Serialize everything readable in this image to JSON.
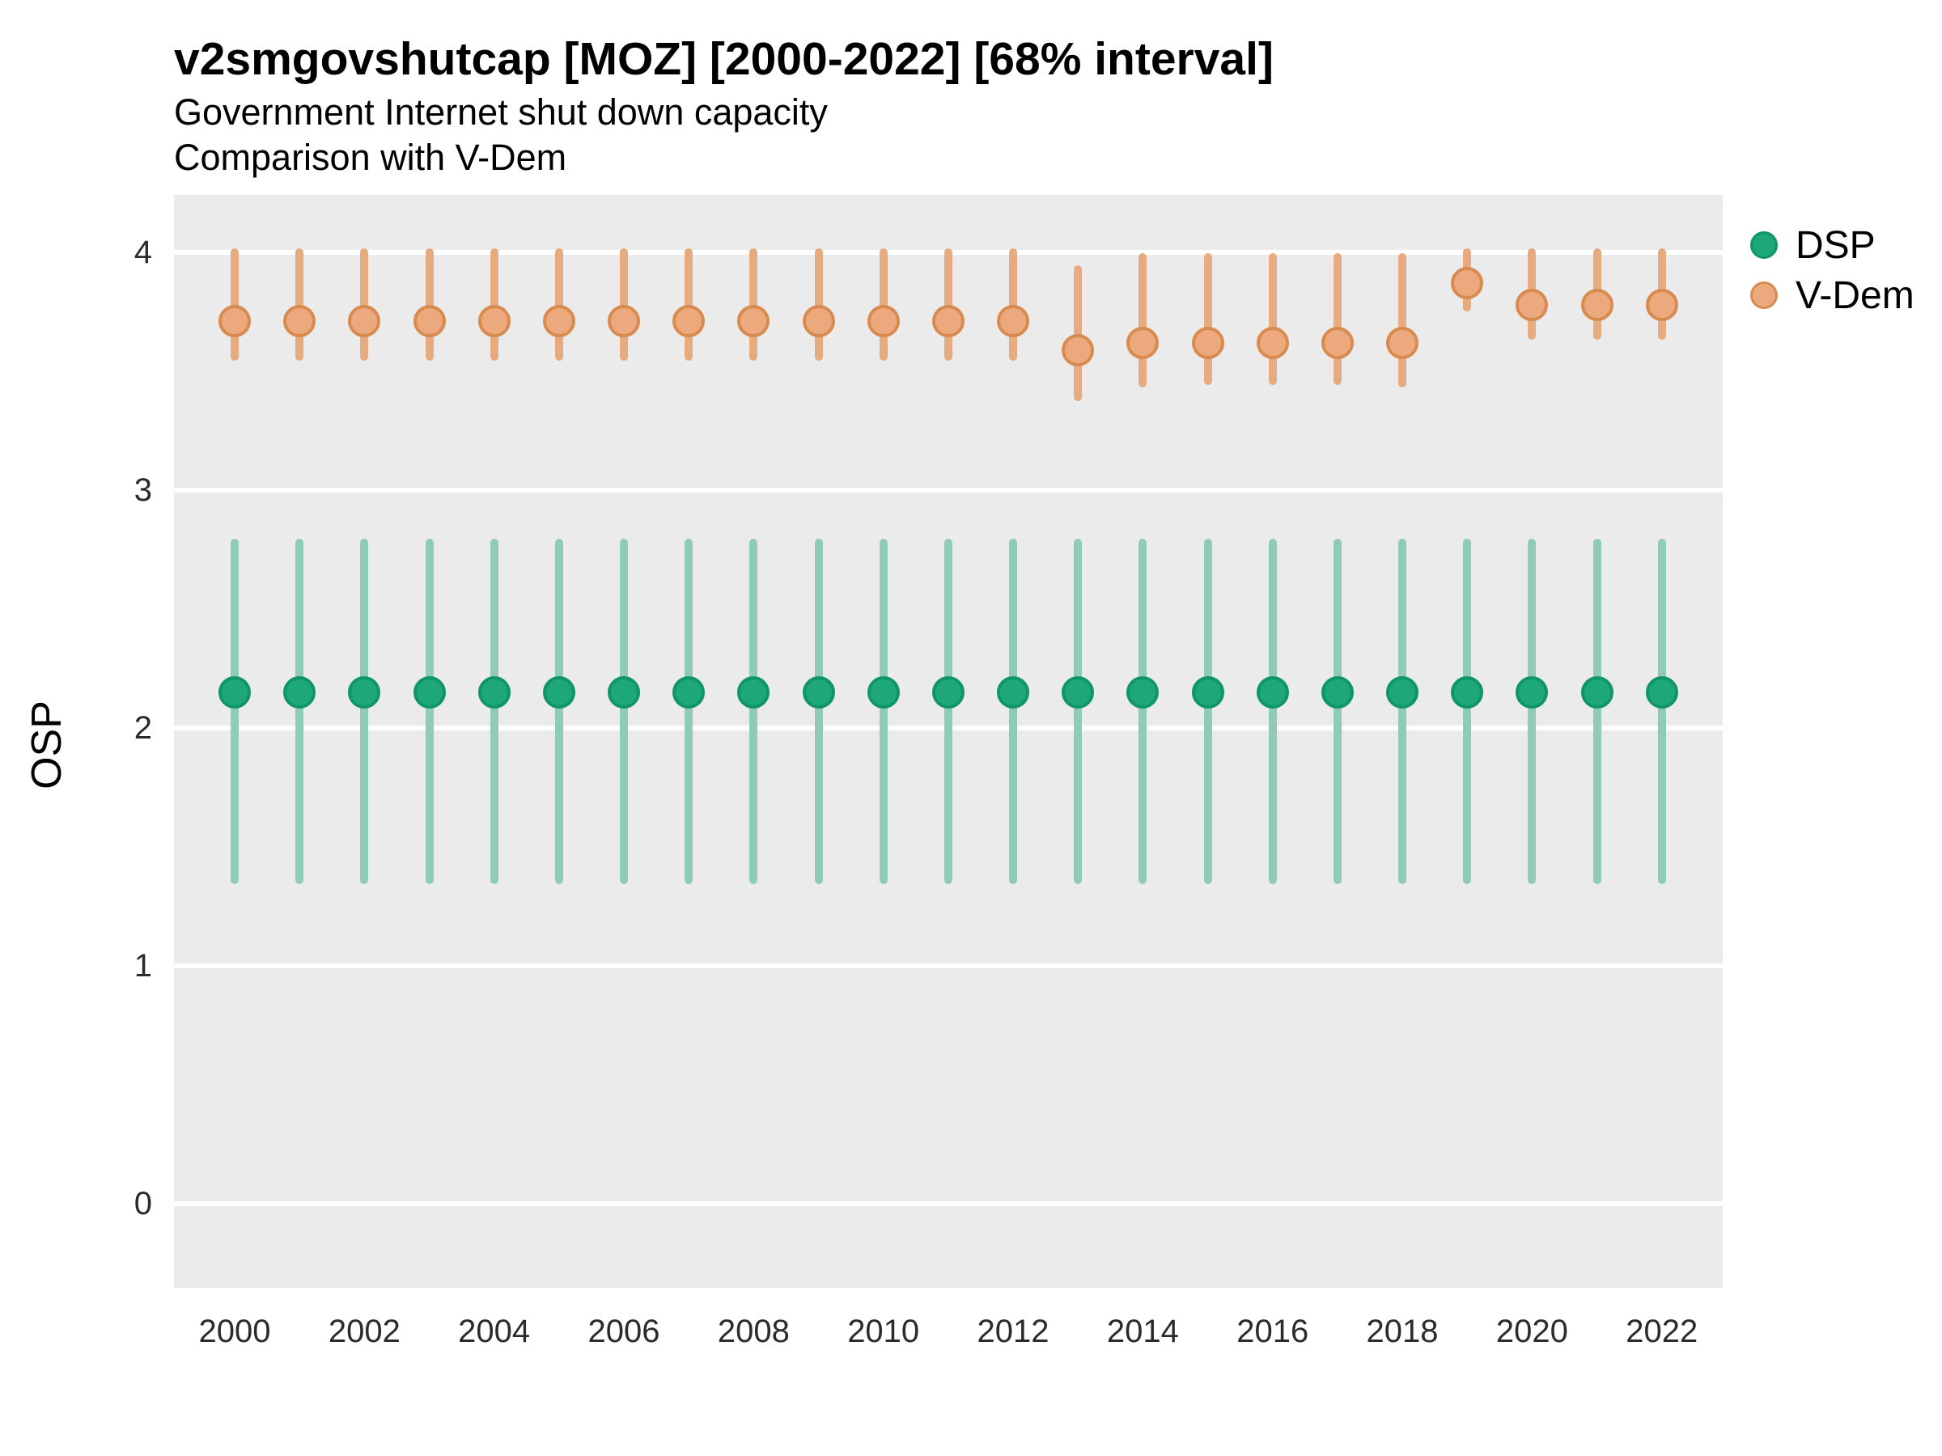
{
  "header": {
    "title": "v2smgovshutcap [MOZ] [2000-2022] [68% interval]",
    "subtitle_line1": "Government Internet shut down capacity",
    "subtitle_line2": "Comparison with V-Dem"
  },
  "axes": {
    "y_label": "OSP",
    "y_ticks": [
      4,
      3,
      2,
      1,
      0
    ],
    "x_ticks": [
      2000,
      2002,
      2004,
      2006,
      2008,
      2010,
      2012,
      2014,
      2016,
      2018,
      2020,
      2022
    ]
  },
  "legend": {
    "items": [
      {
        "label": "DSP"
      },
      {
        "label": "V-Dem"
      }
    ]
  },
  "colors": {
    "panel_bg": "#EBEBEB",
    "gridline": "#FFFFFF",
    "dsp_bar": "#8FCBB5",
    "dsp_point_fill": "#1DA77B",
    "dsp_point_stroke": "#0F9568",
    "vdem_bar": "#E6AC80",
    "vdem_point_fill": "#EBA97D",
    "vdem_point_stroke": "#D98B4F"
  },
  "chart_data": {
    "type": "pointrange",
    "title": "v2smgovshutcap [MOZ] [2000-2022] [68% interval]",
    "subtitle": [
      "Government Internet shut down capacity",
      "Comparison with V-Dem"
    ],
    "interval": "68%",
    "xlabel": "",
    "ylabel": "OSP",
    "xlim": [
      1999.05,
      2022.95
    ],
    "ylim": [
      -0.36,
      4.24
    ],
    "grid": "major horizontal white lines on gray panel",
    "legend_position": "right",
    "x": [
      2000,
      2001,
      2002,
      2003,
      2004,
      2005,
      2006,
      2007,
      2008,
      2009,
      2010,
      2011,
      2012,
      2013,
      2014,
      2015,
      2016,
      2017,
      2018,
      2019,
      2020,
      2021,
      2022
    ],
    "series": [
      {
        "name": "DSP",
        "points": [
          {
            "year": 2000,
            "est": 2.15,
            "lo": 1.36,
            "hi": 2.78
          },
          {
            "year": 2001,
            "est": 2.15,
            "lo": 1.36,
            "hi": 2.78
          },
          {
            "year": 2002,
            "est": 2.15,
            "lo": 1.36,
            "hi": 2.78
          },
          {
            "year": 2003,
            "est": 2.15,
            "lo": 1.36,
            "hi": 2.78
          },
          {
            "year": 2004,
            "est": 2.15,
            "lo": 1.36,
            "hi": 2.78
          },
          {
            "year": 2005,
            "est": 2.15,
            "lo": 1.36,
            "hi": 2.78
          },
          {
            "year": 2006,
            "est": 2.15,
            "lo": 1.36,
            "hi": 2.78
          },
          {
            "year": 2007,
            "est": 2.15,
            "lo": 1.36,
            "hi": 2.78
          },
          {
            "year": 2008,
            "est": 2.15,
            "lo": 1.36,
            "hi": 2.78
          },
          {
            "year": 2009,
            "est": 2.15,
            "lo": 1.36,
            "hi": 2.78
          },
          {
            "year": 2010,
            "est": 2.15,
            "lo": 1.36,
            "hi": 2.78
          },
          {
            "year": 2011,
            "est": 2.15,
            "lo": 1.36,
            "hi": 2.78
          },
          {
            "year": 2012,
            "est": 2.15,
            "lo": 1.36,
            "hi": 2.78
          },
          {
            "year": 2013,
            "est": 2.15,
            "lo": 1.36,
            "hi": 2.78
          },
          {
            "year": 2014,
            "est": 2.15,
            "lo": 1.36,
            "hi": 2.78
          },
          {
            "year": 2015,
            "est": 2.15,
            "lo": 1.36,
            "hi": 2.78
          },
          {
            "year": 2016,
            "est": 2.15,
            "lo": 1.36,
            "hi": 2.78
          },
          {
            "year": 2017,
            "est": 2.15,
            "lo": 1.36,
            "hi": 2.78
          },
          {
            "year": 2018,
            "est": 2.15,
            "lo": 1.36,
            "hi": 2.78
          },
          {
            "year": 2019,
            "est": 2.15,
            "lo": 1.36,
            "hi": 2.78
          },
          {
            "year": 2020,
            "est": 2.15,
            "lo": 1.36,
            "hi": 2.78
          },
          {
            "year": 2021,
            "est": 2.15,
            "lo": 1.36,
            "hi": 2.78
          },
          {
            "year": 2022,
            "est": 2.15,
            "lo": 1.36,
            "hi": 2.78
          }
        ]
      },
      {
        "name": "V-Dem",
        "points": [
          {
            "year": 2000,
            "est": 3.71,
            "lo": 3.56,
            "hi": 4.0
          },
          {
            "year": 2001,
            "est": 3.71,
            "lo": 3.56,
            "hi": 4.0
          },
          {
            "year": 2002,
            "est": 3.71,
            "lo": 3.56,
            "hi": 4.0
          },
          {
            "year": 2003,
            "est": 3.71,
            "lo": 3.56,
            "hi": 4.0
          },
          {
            "year": 2004,
            "est": 3.71,
            "lo": 3.56,
            "hi": 4.0
          },
          {
            "year": 2005,
            "est": 3.71,
            "lo": 3.56,
            "hi": 4.0
          },
          {
            "year": 2006,
            "est": 3.71,
            "lo": 3.56,
            "hi": 4.0
          },
          {
            "year": 2007,
            "est": 3.71,
            "lo": 3.56,
            "hi": 4.0
          },
          {
            "year": 2008,
            "est": 3.71,
            "lo": 3.56,
            "hi": 4.0
          },
          {
            "year": 2009,
            "est": 3.71,
            "lo": 3.56,
            "hi": 4.0
          },
          {
            "year": 2010,
            "est": 3.71,
            "lo": 3.56,
            "hi": 4.0
          },
          {
            "year": 2011,
            "est": 3.71,
            "lo": 3.56,
            "hi": 4.0
          },
          {
            "year": 2012,
            "est": 3.71,
            "lo": 3.56,
            "hi": 4.0
          },
          {
            "year": 2013,
            "est": 3.59,
            "lo": 3.39,
            "hi": 3.93
          },
          {
            "year": 2014,
            "est": 3.62,
            "lo": 3.45,
            "hi": 3.98
          },
          {
            "year": 2015,
            "est": 3.62,
            "lo": 3.46,
            "hi": 3.98
          },
          {
            "year": 2016,
            "est": 3.62,
            "lo": 3.46,
            "hi": 3.98
          },
          {
            "year": 2017,
            "est": 3.62,
            "lo": 3.46,
            "hi": 3.98
          },
          {
            "year": 2018,
            "est": 3.62,
            "lo": 3.45,
            "hi": 3.98
          },
          {
            "year": 2019,
            "est": 3.87,
            "lo": 3.77,
            "hi": 4.0
          },
          {
            "year": 2020,
            "est": 3.78,
            "lo": 3.65,
            "hi": 4.0
          },
          {
            "year": 2021,
            "est": 3.78,
            "lo": 3.65,
            "hi": 4.0
          },
          {
            "year": 2022,
            "est": 3.78,
            "lo": 3.65,
            "hi": 4.0
          }
        ]
      }
    ]
  }
}
